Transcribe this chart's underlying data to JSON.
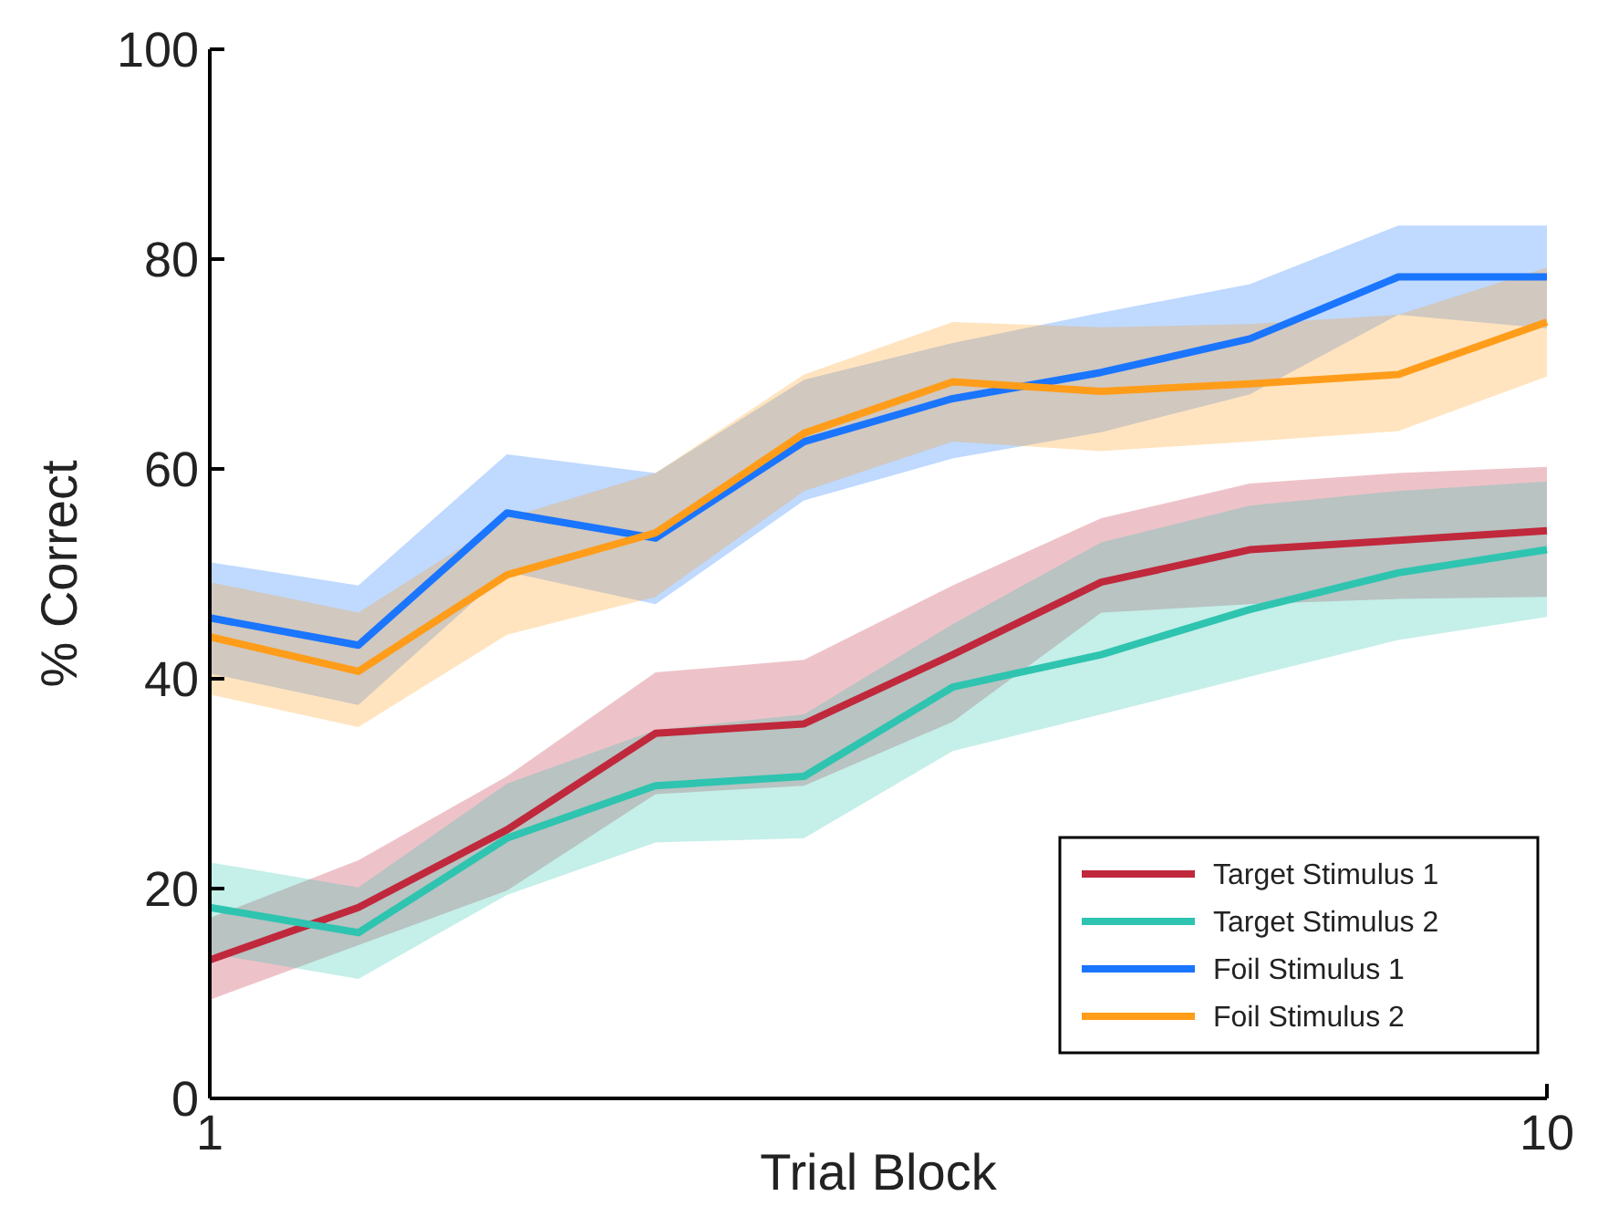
{
  "chart_data": {
    "type": "line",
    "xlabel": "Trial Block",
    "ylabel": "% Correct",
    "x": [
      1,
      2,
      3,
      4,
      5,
      6,
      7,
      8,
      9,
      10
    ],
    "xlim": [
      1,
      10
    ],
    "xticks": [
      1,
      10
    ],
    "ylim": [
      0,
      100
    ],
    "yticks": [
      0,
      20,
      40,
      60,
      80,
      100
    ],
    "grid": false,
    "legend": "bottom right",
    "marker": "none",
    "line_style": "solid",
    "series": [
      {
        "name": "Target Stimulus 1",
        "color": "#c0283c",
        "values": [
          13.2,
          18.2,
          25.6,
          34.8,
          35.7,
          42.3,
          49.2,
          52.3,
          53.2,
          54.1
        ],
        "lower": [
          9.4,
          14.6,
          19.8,
          29.0,
          29.8,
          35.9,
          46.3,
          47.1,
          47.6,
          47.8
        ],
        "upper": [
          17.2,
          22.7,
          30.7,
          40.6,
          41.8,
          48.9,
          55.3,
          58.6,
          59.6,
          60.2
        ]
      },
      {
        "name": "Target Stimulus 2",
        "color": "#2ec4b0",
        "values": [
          18.2,
          15.8,
          24.8,
          29.8,
          30.7,
          39.2,
          42.3,
          46.6,
          50.1,
          52.3
        ],
        "lower": [
          13.8,
          11.4,
          19.4,
          24.4,
          24.8,
          33.1,
          36.6,
          40.2,
          43.7,
          45.9
        ],
        "upper": [
          22.5,
          20.1,
          30.0,
          35.1,
          36.6,
          45.2,
          53.0,
          56.5,
          57.9,
          58.8
        ]
      },
      {
        "name": "Foil Stimulus 1",
        "color": "#1a75ff",
        "values": [
          45.8,
          43.2,
          55.8,
          53.4,
          62.6,
          66.7,
          69.2,
          72.4,
          78.3,
          78.3
        ],
        "lower": [
          40.5,
          37.5,
          50.2,
          47.1,
          57.0,
          61.0,
          63.5,
          67.1,
          74.7,
          73.4
        ],
        "upper": [
          51.1,
          48.9,
          61.4,
          59.6,
          68.5,
          72.0,
          74.9,
          77.6,
          83.2,
          83.2
        ]
      },
      {
        "name": "Foil Stimulus 2",
        "color": "#ff9d1a",
        "values": [
          44.0,
          40.7,
          49.9,
          53.9,
          63.4,
          68.3,
          67.4,
          68.1,
          69.0,
          74.0
        ],
        "lower": [
          38.5,
          35.4,
          44.2,
          47.8,
          57.9,
          62.6,
          61.7,
          62.6,
          63.6,
          68.8
        ],
        "upper": [
          49.2,
          46.3,
          55.3,
          59.6,
          69.0,
          74.0,
          73.5,
          73.8,
          74.7,
          79.2
        ]
      }
    ]
  }
}
